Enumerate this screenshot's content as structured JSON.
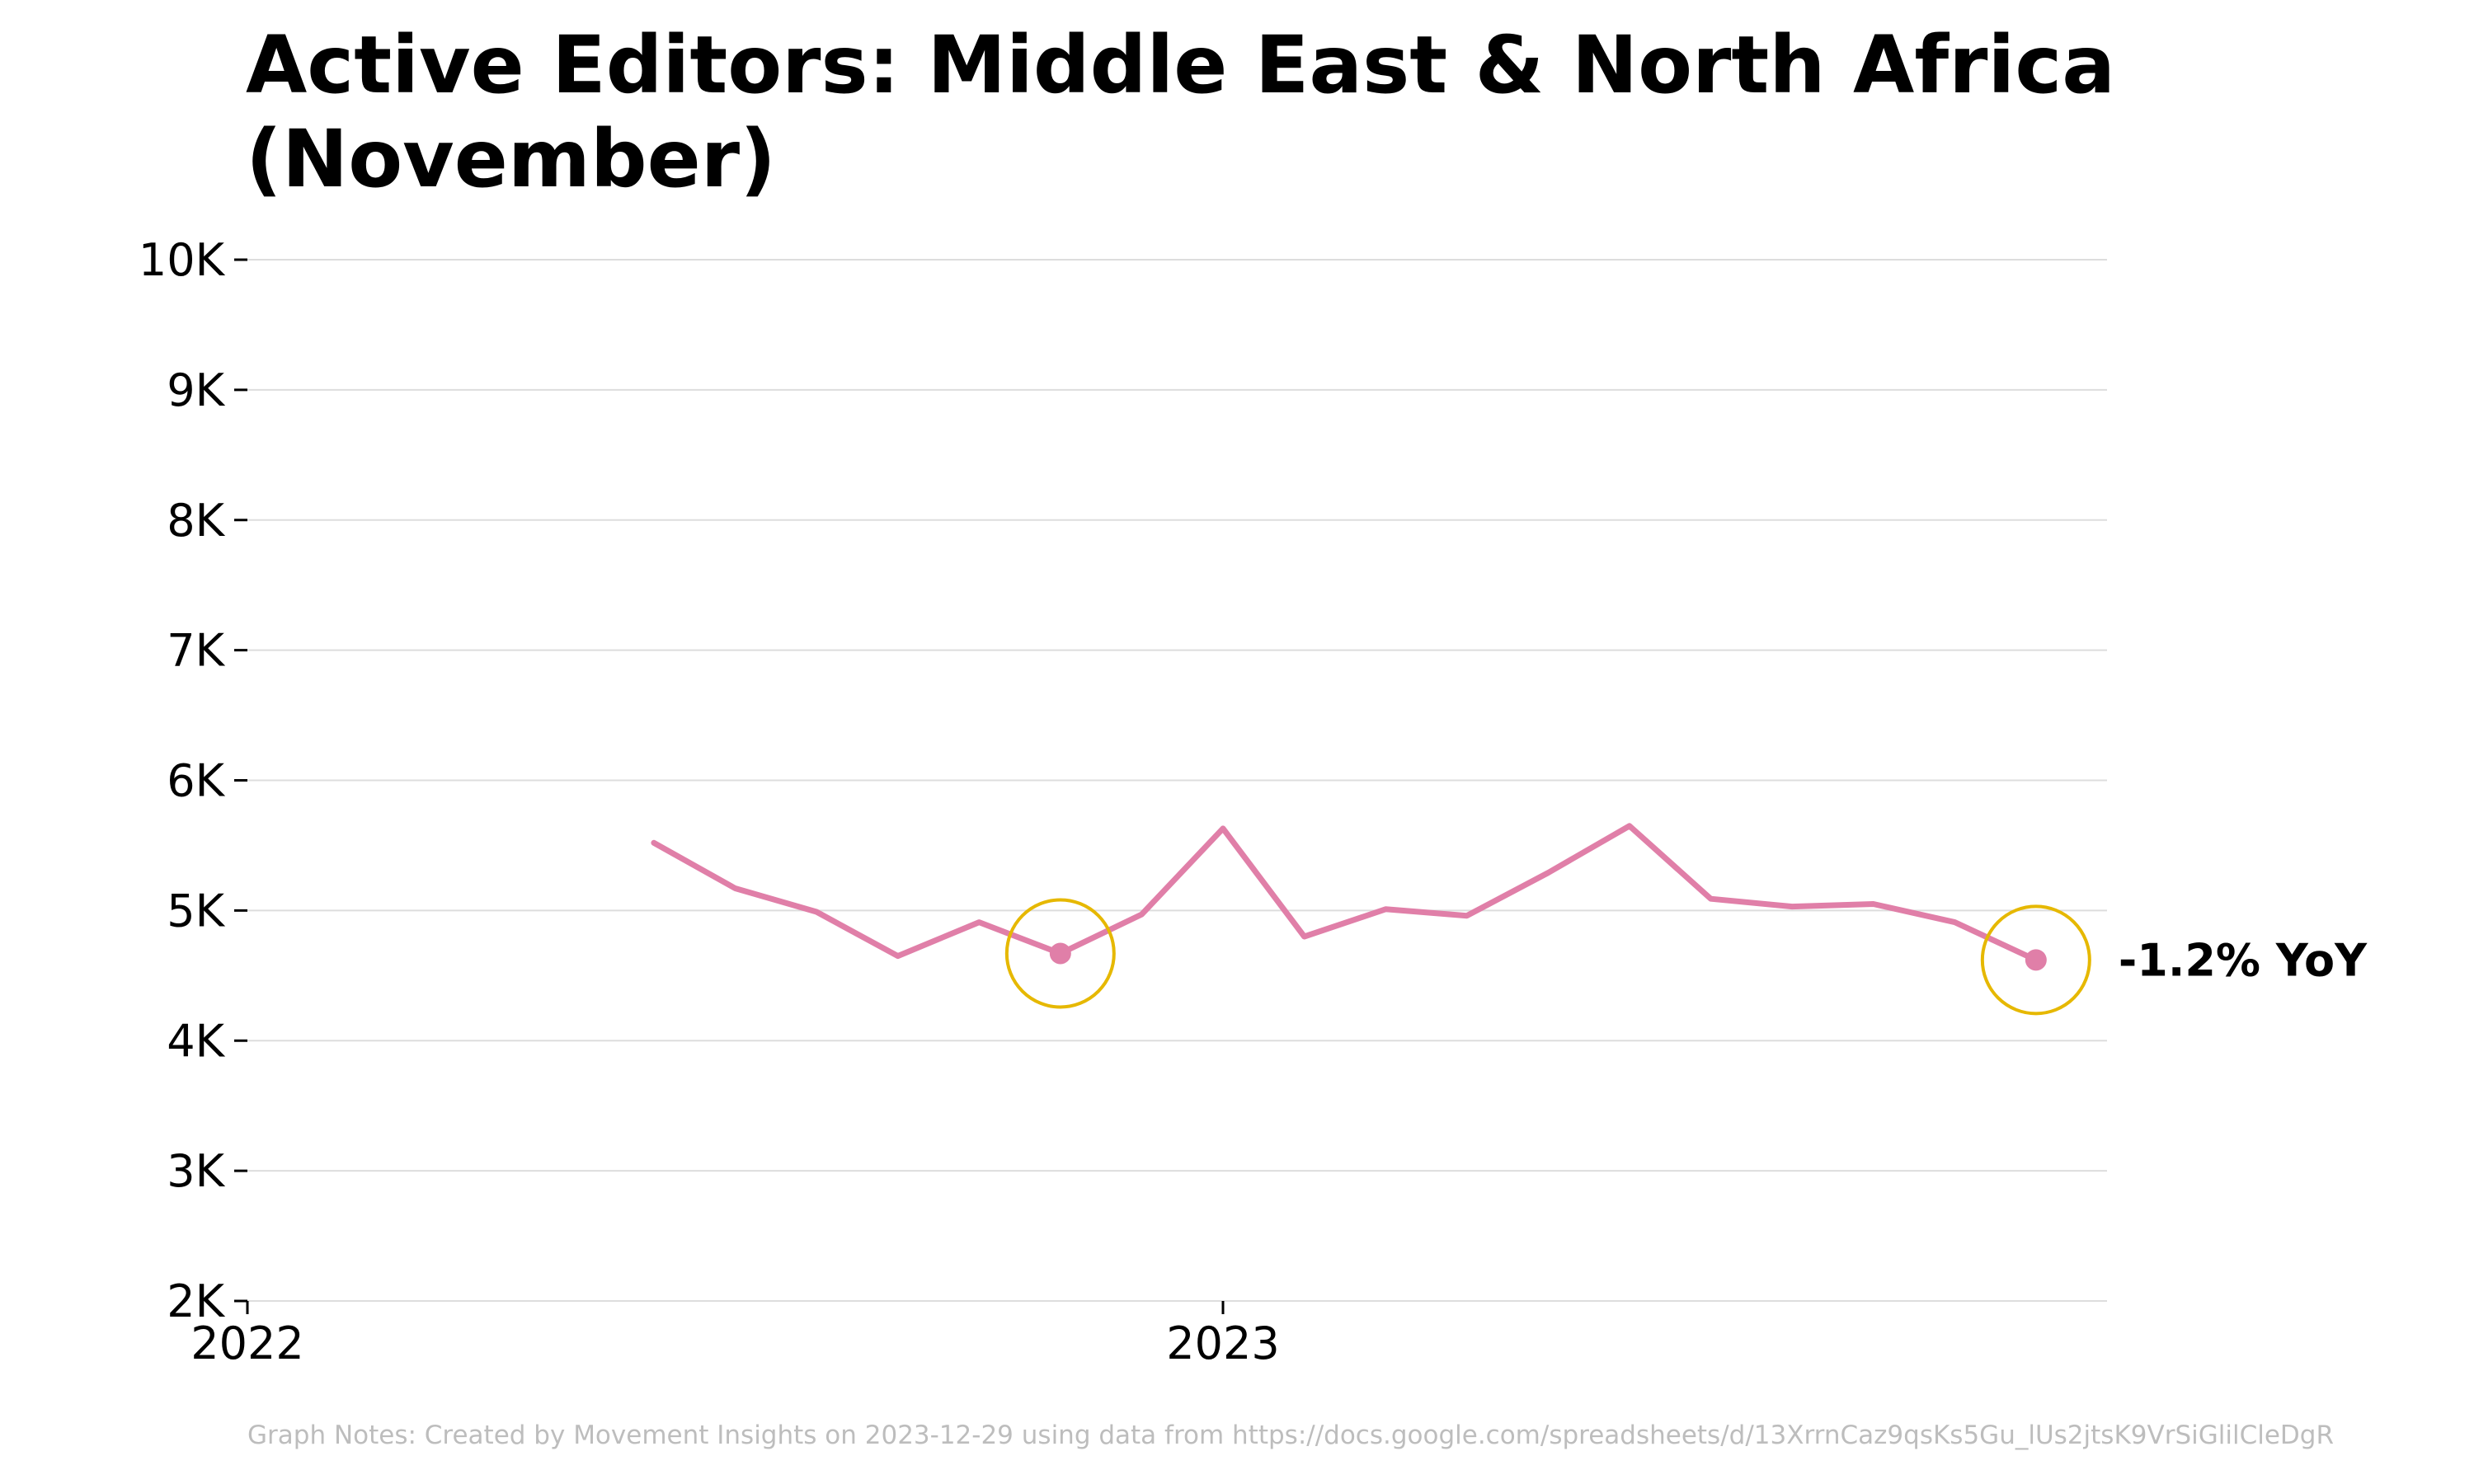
{
  "chart_data": {
    "type": "line",
    "title": "Active Editors: Middle East & North Africa (November)",
    "xlabel": "",
    "ylabel": "",
    "x_ticks": [
      "2022",
      "2023"
    ],
    "y_ticks": [
      "2K",
      "3K",
      "4K",
      "5K",
      "6K",
      "7K",
      "8K",
      "9K",
      "10K"
    ],
    "ylim": [
      2000,
      10000
    ],
    "xlim": [
      "2022-01",
      "2023-12"
    ],
    "grid": "horizontal",
    "series": [
      {
        "color": "#e07fa8",
        "points": [
          {
            "x": "2022-06",
            "y": 5520
          },
          {
            "x": "2022-07",
            "y": 5170
          },
          {
            "x": "2022-08",
            "y": 4990
          },
          {
            "x": "2022-09",
            "y": 4650
          },
          {
            "x": "2022-10",
            "y": 4910
          },
          {
            "x": "2022-11",
            "y": 4670
          },
          {
            "x": "2022-12",
            "y": 4970
          },
          {
            "x": "2023-01",
            "y": 5630
          },
          {
            "x": "2023-02",
            "y": 4800
          },
          {
            "x": "2023-03",
            "y": 5010
          },
          {
            "x": "2023-04",
            "y": 4960
          },
          {
            "x": "2023-05",
            "y": 5290
          },
          {
            "x": "2023-06",
            "y": 5650
          },
          {
            "x": "2023-07",
            "y": 5090
          },
          {
            "x": "2023-08",
            "y": 5030
          },
          {
            "x": "2023-09",
            "y": 5050
          },
          {
            "x": "2023-10",
            "y": 4910
          },
          {
            "x": "2023-11",
            "y": 4620
          }
        ]
      }
    ],
    "highlights": [
      {
        "x": "2022-11",
        "y": 4670
      },
      {
        "x": "2023-11",
        "y": 4620
      }
    ],
    "annotation": {
      "text": "-1.2% YoY",
      "x": "2023-11",
      "y": 4620
    },
    "highlight_color": "#e6b800",
    "grid_color": "#dddddd"
  },
  "footnote": "Graph Notes: Created by Movement Insights  on 2023-12-29 using data from https://docs.google.com/spreadsheets/d/13XrrnCaz9qsKs5Gu_lUs2jtsK9VrSiGlilCleDgR"
}
